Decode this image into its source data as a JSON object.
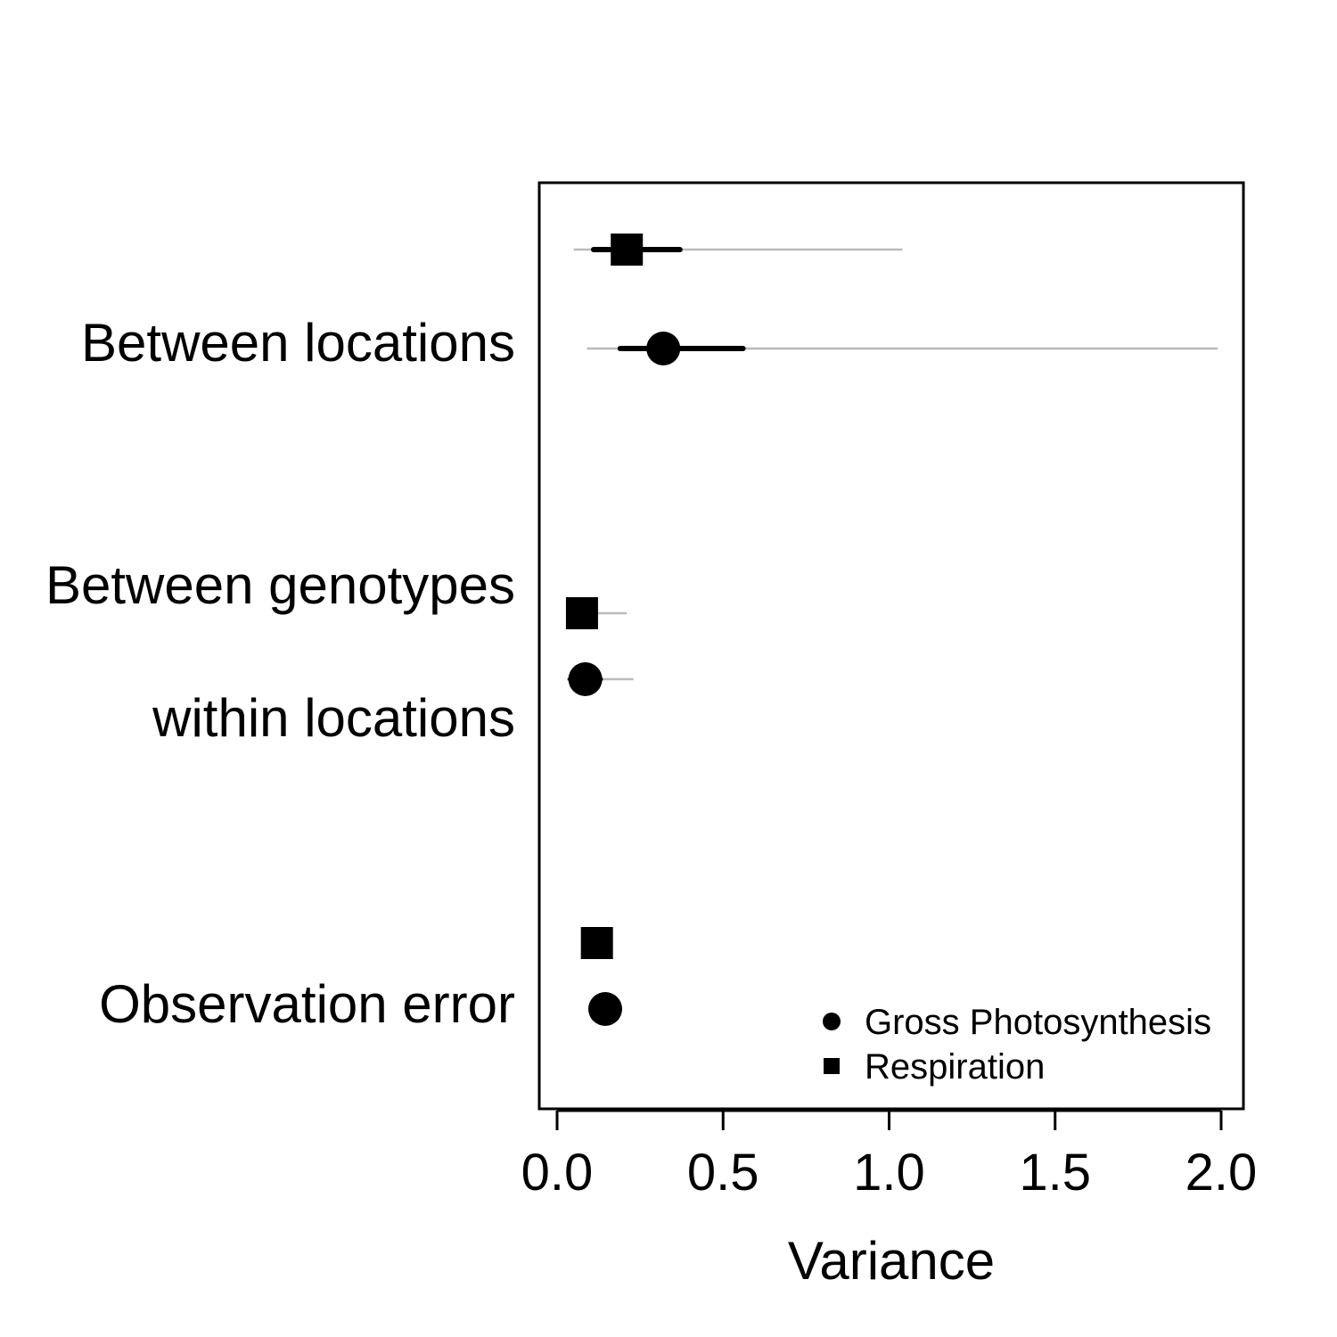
{
  "chart_data": {
    "type": "dot-whisker",
    "title": "",
    "xlabel": "Variance",
    "ylabel": "",
    "xlim": [
      0.0,
      2.0
    ],
    "xticks": [
      "0.0",
      "0.5",
      "1.0",
      "1.5",
      "2.0"
    ],
    "groups": [
      {
        "label_lines": [
          "Between locations"
        ]
      },
      {
        "label_lines": [
          "Between genotypes",
          "within locations"
        ]
      },
      {
        "label_lines": [
          "Observation error"
        ]
      }
    ],
    "series": [
      {
        "name": "Gross Photosynthesis",
        "marker": "circle",
        "points": [
          {
            "group": 0,
            "median": 0.32,
            "inner": [
              0.19,
              0.56
            ],
            "outer": [
              0.09,
              1.99
            ]
          },
          {
            "group": 1,
            "median": 0.085,
            "inner": [
              0.04,
              0.13
            ],
            "outer": [
              0.03,
              0.23
            ]
          },
          {
            "group": 2,
            "median": 0.145,
            "inner": [
              0.13,
              0.16
            ],
            "outer": [
              0.115,
              0.185
            ]
          }
        ]
      },
      {
        "name": "Respiration",
        "marker": "square",
        "points": [
          {
            "group": 0,
            "median": 0.21,
            "inner": [
              0.11,
              0.37
            ],
            "outer": [
              0.05,
              1.04
            ]
          },
          {
            "group": 1,
            "median": 0.075,
            "inner": [
              0.035,
              0.11
            ],
            "outer": [
              0.03,
              0.21
            ]
          },
          {
            "group": 2,
            "median": 0.12,
            "inner": [
              0.105,
              0.135
            ],
            "outer": [
              0.09,
              0.16
            ]
          }
        ]
      }
    ],
    "legend": {
      "position": "bottom-right",
      "entries": [
        {
          "label": "Gross Photosynthesis",
          "marker": "circle"
        },
        {
          "label": "Respiration",
          "marker": "square"
        }
      ]
    },
    "colors": {
      "marker": "#000000",
      "inner_interval": "#000000",
      "outer_interval": "#bbbbbb"
    }
  }
}
